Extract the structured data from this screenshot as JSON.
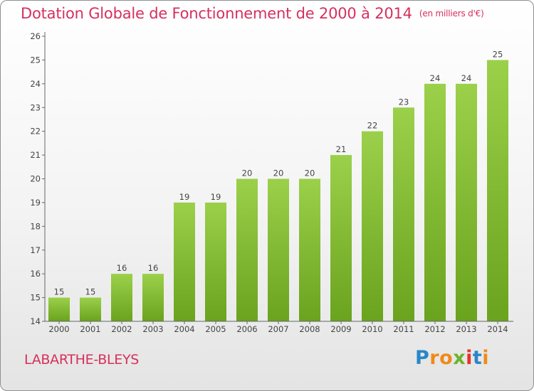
{
  "chart_data": {
    "type": "bar",
    "title": "Dotation Globale de Fonctionnement de 2000 à 2014",
    "unit": "(en milliers d'€)",
    "categories": [
      "2000",
      "2001",
      "2002",
      "2003",
      "2004",
      "2005",
      "2006",
      "2007",
      "2008",
      "2009",
      "2010",
      "2011",
      "2012",
      "2013",
      "2014"
    ],
    "values": [
      15,
      15,
      16,
      16,
      19,
      19,
      20,
      20,
      20,
      21,
      22,
      23,
      24,
      24,
      25
    ],
    "yticks": [
      14,
      15,
      16,
      17,
      18,
      19,
      20,
      21,
      22,
      23,
      24,
      25,
      26
    ],
    "ylim": [
      14,
      26
    ],
    "xlabel": "",
    "ylabel": "",
    "grid": false,
    "bar_color": "#7cb927"
  },
  "commune": "LABARTHE-BLEYS",
  "logo": {
    "text": "Proxiti",
    "letters": [
      "P",
      "r",
      "o",
      "x",
      "i",
      "t",
      "i"
    ],
    "colors": [
      "#2a86c8",
      "#f08a1a",
      "#f08a1a",
      "#6bb42a",
      "#e5332a",
      "#2a86c8",
      "#f08a1a"
    ]
  },
  "colors": {
    "title": "#d6305e",
    "axis": "#555555"
  }
}
